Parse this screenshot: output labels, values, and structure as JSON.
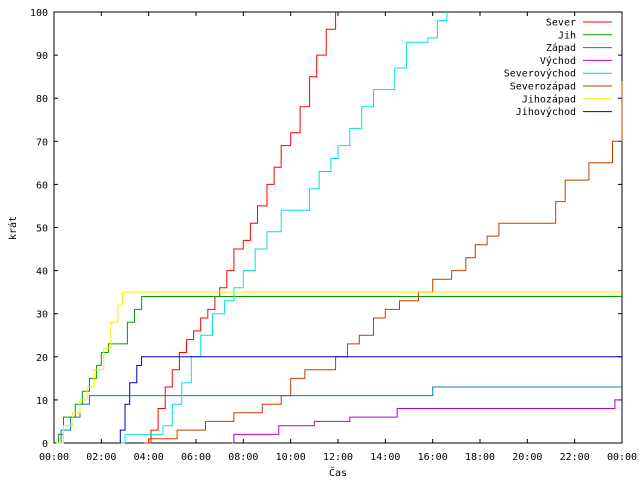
{
  "chart_data": {
    "type": "line",
    "xlabel": "Čas",
    "ylabel": "krát",
    "xlim": [
      0,
      24
    ],
    "ylim": [
      0,
      100
    ],
    "xticks": [
      "00:00",
      "02:00",
      "04:00",
      "06:00",
      "08:00",
      "10:00",
      "12:00",
      "14:00",
      "16:00",
      "18:00",
      "20:00",
      "22:00",
      "00:00"
    ],
    "yticks": [
      0,
      10,
      20,
      30,
      40,
      50,
      60,
      70,
      80,
      90,
      100
    ],
    "grid": false,
    "legend": "top-right",
    "series": [
      {
        "name": "Sever",
        "color": "#ff0000",
        "points": [
          [
            3.9,
            0
          ],
          [
            4.1,
            3
          ],
          [
            4.4,
            8
          ],
          [
            4.7,
            13
          ],
          [
            5.0,
            17
          ],
          [
            5.3,
            21
          ],
          [
            5.6,
            24
          ],
          [
            5.9,
            26
          ],
          [
            6.2,
            29
          ],
          [
            6.5,
            31
          ],
          [
            6.8,
            34
          ],
          [
            7.0,
            36
          ],
          [
            7.3,
            40
          ],
          [
            7.6,
            45
          ],
          [
            8.0,
            47
          ],
          [
            8.3,
            51
          ],
          [
            8.6,
            55
          ],
          [
            9.0,
            60
          ],
          [
            9.3,
            64
          ],
          [
            9.6,
            69
          ],
          [
            10.0,
            72
          ],
          [
            10.4,
            78
          ],
          [
            10.8,
            85
          ],
          [
            11.1,
            90
          ],
          [
            11.5,
            96
          ],
          [
            11.9,
            100
          ]
        ]
      },
      {
        "name": "Jih",
        "color": "#00a000",
        "points": [
          [
            0.1,
            0
          ],
          [
            0.2,
            2
          ],
          [
            0.4,
            6
          ],
          [
            0.7,
            6
          ],
          [
            0.9,
            9
          ],
          [
            1.2,
            12
          ],
          [
            1.5,
            15
          ],
          [
            1.8,
            18
          ],
          [
            2.0,
            21
          ],
          [
            2.3,
            23
          ],
          [
            2.8,
            23
          ],
          [
            3.1,
            28
          ],
          [
            3.4,
            31
          ],
          [
            3.7,
            34
          ],
          [
            24,
            34
          ]
        ]
      },
      {
        "name": "Západ",
        "color": "#0080c0",
        "points": [
          [
            0.1,
            0
          ],
          [
            0.3,
            3
          ],
          [
            0.7,
            6
          ],
          [
            1.1,
            9
          ],
          [
            1.5,
            11
          ],
          [
            15.9,
            11
          ],
          [
            16.0,
            13
          ],
          [
            24,
            13
          ]
        ]
      },
      {
        "name": "Východ",
        "color": "#c000c0",
        "points": [
          [
            7.5,
            0
          ],
          [
            7.6,
            2
          ],
          [
            9.3,
            2
          ],
          [
            9.5,
            4
          ],
          [
            10.5,
            4
          ],
          [
            11.0,
            5
          ],
          [
            12.5,
            6
          ],
          [
            14.5,
            8
          ],
          [
            23.5,
            8
          ],
          [
            23.7,
            10
          ],
          [
            24,
            10
          ]
        ]
      },
      {
        "name": "Severovýchod",
        "color": "#00e0e0",
        "points": [
          [
            2.8,
            0
          ],
          [
            3.0,
            2
          ],
          [
            4.2,
            2
          ],
          [
            4.6,
            4
          ],
          [
            5.0,
            9
          ],
          [
            5.4,
            14
          ],
          [
            5.8,
            20
          ],
          [
            6.2,
            25
          ],
          [
            6.7,
            30
          ],
          [
            7.2,
            33
          ],
          [
            7.6,
            36
          ],
          [
            8.0,
            40
          ],
          [
            8.5,
            45
          ],
          [
            9.0,
            49
          ],
          [
            9.6,
            54
          ],
          [
            10.4,
            54
          ],
          [
            10.8,
            59
          ],
          [
            11.2,
            63
          ],
          [
            11.7,
            66
          ],
          [
            12.0,
            69
          ],
          [
            12.5,
            73
          ],
          [
            13.0,
            78
          ],
          [
            13.5,
            82
          ],
          [
            14.0,
            82
          ],
          [
            14.4,
            87
          ],
          [
            14.9,
            93
          ],
          [
            15.8,
            94
          ],
          [
            16.2,
            98
          ],
          [
            16.6,
            100
          ]
        ]
      },
      {
        "name": "Severozápad",
        "color": "#c04000",
        "points": [
          [
            3.8,
            0
          ],
          [
            4.0,
            1
          ],
          [
            5.2,
            3
          ],
          [
            6.4,
            5
          ],
          [
            7.6,
            7
          ],
          [
            8.8,
            9
          ],
          [
            9.6,
            11
          ],
          [
            10.0,
            15
          ],
          [
            10.6,
            17
          ],
          [
            11.6,
            17
          ],
          [
            11.9,
            20
          ],
          [
            12.4,
            23
          ],
          [
            12.9,
            25
          ],
          [
            13.5,
            29
          ],
          [
            14.0,
            31
          ],
          [
            14.6,
            33
          ],
          [
            15.4,
            35
          ],
          [
            16.0,
            38
          ],
          [
            16.8,
            40
          ],
          [
            17.4,
            43
          ],
          [
            17.8,
            46
          ],
          [
            18.3,
            48
          ],
          [
            18.8,
            51
          ],
          [
            20.8,
            51
          ],
          [
            21.2,
            56
          ],
          [
            21.6,
            61
          ],
          [
            22.3,
            61
          ],
          [
            22.6,
            65
          ],
          [
            23.3,
            65
          ],
          [
            23.6,
            70
          ],
          [
            24,
            84
          ]
        ]
      },
      {
        "name": "Jihozápad",
        "color": "#f0f000",
        "points": [
          [
            0.1,
            0
          ],
          [
            0.4,
            4
          ],
          [
            0.8,
            7
          ],
          [
            1.1,
            10
          ],
          [
            1.4,
            13
          ],
          [
            1.7,
            17
          ],
          [
            2.1,
            22
          ],
          [
            2.4,
            28
          ],
          [
            2.7,
            32
          ],
          [
            2.9,
            35
          ],
          [
            24,
            35
          ]
        ]
      },
      {
        "name": "Jihovýchod",
        "color": "#0000c0",
        "points": [
          [
            2.7,
            0
          ],
          [
            2.8,
            3
          ],
          [
            3.0,
            9
          ],
          [
            3.2,
            14
          ],
          [
            3.5,
            18
          ],
          [
            3.7,
            20
          ],
          [
            24,
            20
          ]
        ]
      }
    ]
  }
}
